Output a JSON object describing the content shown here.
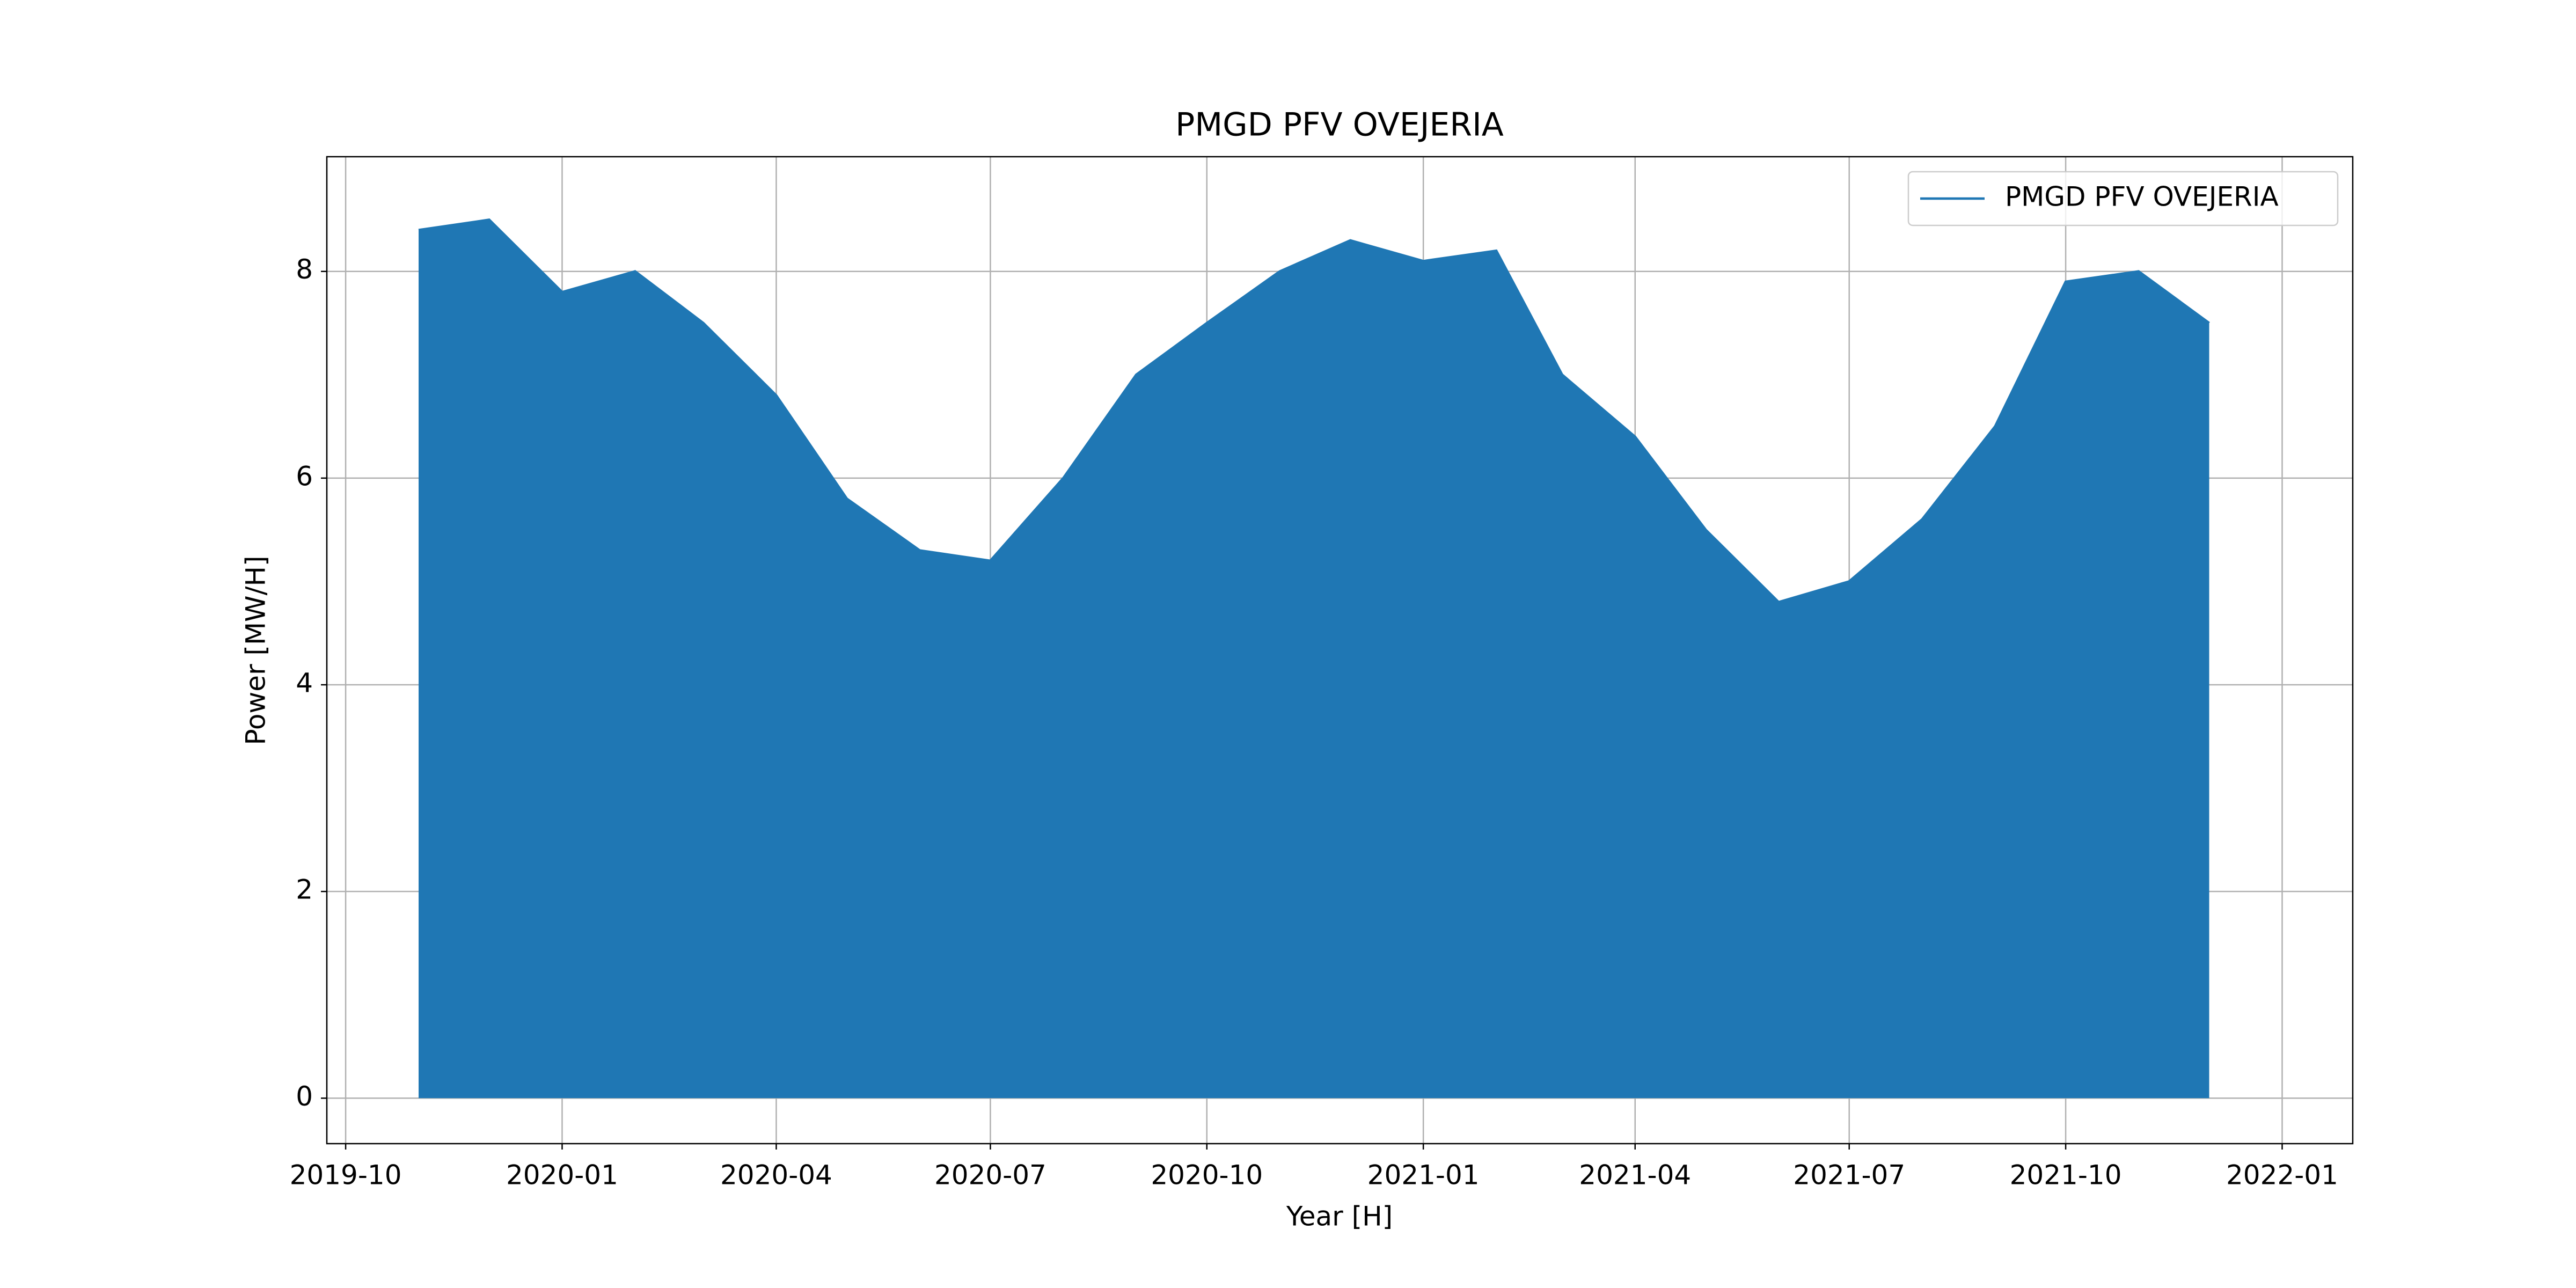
{
  "chart_data": {
    "type": "line",
    "title": "PMGD PFV OVEJERIA",
    "x_label": "Year [H]",
    "y_label": "Power [MW/H]",
    "x": [
      "2019-11",
      "2019-12",
      "2020-01",
      "2020-02",
      "2020-03",
      "2020-04",
      "2020-05",
      "2020-06",
      "2020-07",
      "2020-08",
      "2020-09",
      "2020-10",
      "2020-11",
      "2020-12",
      "2021-01",
      "2021-02",
      "2021-03",
      "2021-04",
      "2021-05",
      "2021-06",
      "2021-07",
      "2021-08",
      "2021-09",
      "2021-10",
      "2021-11",
      "2021-12"
    ],
    "series": [
      {
        "name": "PMGD PFV OVEJERIA",
        "color": "#1f77b4",
        "values": [
          8.4,
          8.5,
          7.8,
          8.0,
          7.5,
          6.8,
          5.8,
          5.3,
          5.2,
          6.0,
          7.0,
          7.5,
          8.0,
          8.3,
          8.1,
          8.2,
          7.0,
          6.4,
          5.5,
          4.8,
          5.0,
          5.6,
          6.5,
          7.9,
          8.0,
          7.5
        ]
      }
    ],
    "xlim": [
      "2019-09-23",
      "2022-01-31"
    ],
    "xticks": [
      "2019-10",
      "2020-01",
      "2020-04",
      "2020-07",
      "2020-10",
      "2021-01",
      "2021-04",
      "2021-07",
      "2021-10",
      "2022-01"
    ],
    "ylim": [
      -0.44,
      9.11
    ],
    "yticks": [
      0,
      2,
      4,
      6,
      8
    ],
    "grid": true,
    "legend": "upper right"
  }
}
